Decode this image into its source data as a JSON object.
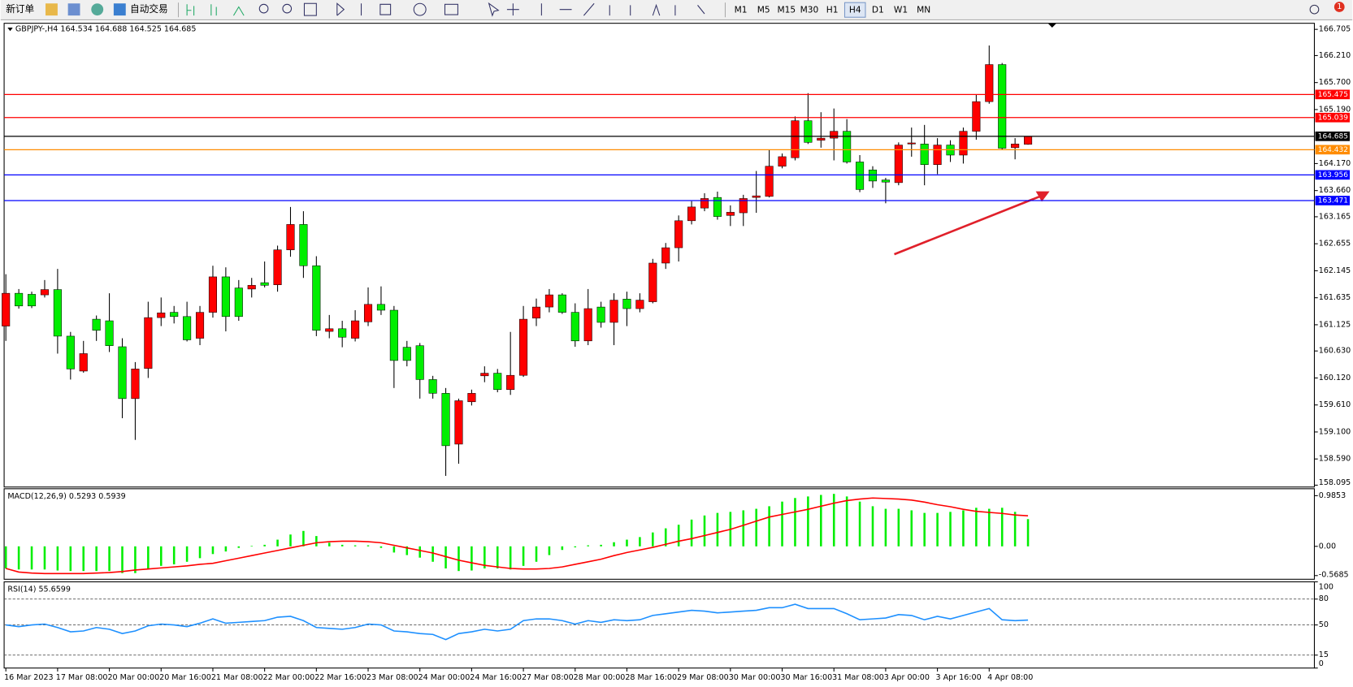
{
  "toolbar": {
    "new_order": "新订单",
    "auto_trading": "自动交易",
    "timeframes": [
      "M1",
      "M5",
      "M15",
      "M30",
      "H1",
      "H4",
      "D1",
      "W1",
      "MN"
    ],
    "selected": "H4",
    "notifications": "1"
  },
  "chart_data": [
    {
      "type": "candlestick",
      "title": "GBPJPY-,H4 164.534 164.688 164.525 164.685",
      "categories": [
        "16 Mar 2023",
        null,
        null,
        null,
        "17 Mar 08:00",
        null,
        null,
        null,
        "20 Mar 00:00",
        null,
        null,
        null,
        "20 Mar 16:00",
        null,
        null,
        null,
        "21 Mar 08:00",
        null,
        null,
        null,
        "22 Mar 00:00",
        null,
        null,
        null,
        "22 Mar 16:00",
        null,
        null,
        null,
        "23 Mar 08:00",
        null,
        null,
        null,
        "24 Mar 00:00",
        null,
        null,
        null,
        "24 Mar 16:00",
        null,
        null,
        null,
        "27 Mar 08:00",
        null,
        null,
        null,
        "28 Mar 00:00",
        null,
        null,
        null,
        "28 Mar 16:00",
        null,
        null,
        null,
        "29 Mar 08:00",
        null,
        null,
        null,
        "30 Mar 00:00",
        null,
        null,
        null,
        "30 Mar 16:00",
        null,
        null,
        null,
        "31 Mar 08:00",
        null,
        null,
        null,
        "3 Apr 00:00",
        null,
        null,
        null,
        "3 Apr 16:00",
        null,
        null,
        null,
        "4 Apr 08:00",
        null,
        null,
        null
      ],
      "open": [
        161.1,
        161.72,
        161.7,
        161.69,
        161.79,
        160.91,
        160.25,
        161.23,
        161.2,
        160.71,
        159.73,
        160.3,
        161.26,
        161.36,
        161.28,
        160.87,
        161.36,
        162.03,
        161.82,
        161.8,
        161.92,
        161.88,
        162.54,
        163.02,
        162.24,
        161.0,
        161.05,
        160.87,
        161.18,
        161.51,
        161.4,
        160.7,
        160.73,
        160.09,
        159.83,
        158.87,
        159.67,
        160.16,
        160.21,
        159.9,
        160.17,
        161.25,
        161.46,
        161.69,
        161.36,
        160.82,
        161.46,
        161.17,
        161.61,
        161.43,
        161.56,
        162.29,
        162.58,
        163.09,
        163.33,
        163.53,
        163.19,
        163.24,
        163.53,
        163.55,
        164.12,
        164.28,
        164.98,
        164.61,
        164.65,
        164.78,
        164.2,
        164.05,
        163.86,
        163.81,
        164.54,
        164.54,
        164.15,
        164.52,
        164.33,
        164.78,
        165.34,
        166.04,
        164.47,
        164.534
      ],
      "high": [
        162.08,
        161.8,
        161.75,
        161.97,
        162.18,
        160.99,
        160.82,
        161.3,
        161.72,
        160.87,
        160.42,
        161.56,
        161.64,
        161.48,
        161.56,
        161.48,
        162.24,
        162.21,
        161.97,
        162.01,
        162.32,
        162.62,
        163.35,
        163.27,
        162.42,
        161.31,
        161.2,
        161.4,
        161.83,
        161.85,
        161.48,
        160.82,
        160.78,
        160.16,
        159.93,
        159.73,
        159.9,
        160.34,
        160.29,
        160.99,
        161.48,
        161.62,
        161.8,
        161.72,
        161.53,
        161.8,
        161.56,
        161.72,
        161.75,
        161.72,
        162.37,
        162.67,
        163.19,
        163.46,
        163.61,
        163.64,
        163.38,
        163.58,
        164.03,
        164.43,
        164.36,
        165.06,
        165.5,
        165.14,
        165.21,
        165.01,
        164.33,
        164.12,
        163.9,
        164.57,
        164.85,
        164.9,
        164.65,
        164.61,
        164.85,
        165.47,
        166.4,
        166.07,
        164.65,
        164.688
      ],
      "low": [
        160.82,
        161.43,
        161.44,
        161.64,
        160.58,
        160.09,
        160.22,
        160.82,
        160.61,
        159.36,
        158.95,
        160.12,
        161.1,
        161.15,
        160.81,
        160.74,
        161.26,
        161.0,
        161.2,
        161.64,
        161.83,
        161.75,
        162.41,
        162.01,
        160.91,
        160.87,
        160.7,
        160.81,
        161.1,
        161.31,
        159.93,
        160.34,
        159.73,
        159.73,
        158.27,
        158.5,
        159.6,
        160.04,
        159.85,
        159.8,
        160.14,
        161.1,
        161.36,
        161.33,
        160.71,
        160.74,
        161.07,
        160.74,
        161.1,
        161.36,
        161.53,
        162.18,
        162.32,
        163.02,
        163.27,
        163.11,
        162.99,
        162.99,
        163.24,
        163.53,
        164.08,
        164.23,
        164.54,
        164.47,
        164.23,
        164.17,
        163.63,
        163.71,
        163.42,
        163.76,
        164.3,
        163.76,
        163.97,
        164.2,
        164.17,
        164.62,
        165.3,
        164.43,
        164.25,
        164.525
      ],
      "close": [
        161.72,
        161.48,
        161.48,
        161.79,
        160.91,
        160.29,
        160.58,
        161.02,
        160.73,
        159.73,
        160.29,
        161.26,
        161.35,
        161.28,
        160.84,
        161.36,
        162.03,
        161.28,
        161.28,
        161.87,
        161.87,
        162.54,
        163.02,
        162.24,
        161.02,
        161.05,
        160.89,
        161.2,
        161.51,
        161.4,
        160.45,
        160.45,
        160.09,
        159.83,
        158.84,
        159.69,
        159.83,
        160.21,
        159.9,
        160.17,
        161.23,
        161.46,
        161.69,
        161.36,
        160.82,
        161.43,
        161.17,
        161.59,
        161.43,
        161.59,
        162.29,
        162.58,
        163.09,
        163.35,
        163.51,
        163.17,
        163.25,
        163.51,
        163.56,
        164.12,
        164.3,
        164.98,
        164.57,
        164.65,
        164.78,
        164.2,
        163.68,
        163.84,
        163.82,
        164.52,
        164.56,
        164.15,
        164.52,
        164.33,
        164.78,
        165.34,
        166.04,
        164.46,
        164.54,
        164.685
      ],
      "up_color": "#ff0000",
      "down_color": "#00ee00",
      "ylim": [
        158.06,
        166.82
      ],
      "yticks": [
        166.705,
        {
          "value": 166.21,
          "label": "166.210"
        },
        {
          "value": 165.7,
          "label": "165.700"
        },
        {
          "value": 165.19,
          "label": "165.190"
        },
        {
          "value": 164.17,
          "label": "164.170"
        },
        {
          "value": 163.66,
          "label": "163.660"
        },
        163.165,
        162.655,
        162.145,
        161.635,
        161.125,
        {
          "value": 160.63,
          "label": "160.630"
        },
        {
          "value": 160.12,
          "label": "160.120"
        },
        {
          "value": 159.61,
          "label": "159.610"
        },
        {
          "value": 159.1,
          "label": "159.100"
        },
        {
          "value": 158.59,
          "label": "158.590"
        },
        158.095
      ],
      "hlines": [
        {
          "value": 165.475,
          "color": "#ff0000"
        },
        {
          "value": 165.039,
          "color": "#ff0000"
        },
        {
          "value": 164.685,
          "color": "#000000"
        },
        {
          "value": 164.432,
          "color": "#ff8c00"
        },
        {
          "value": 163.956,
          "color": "#0000ff"
        },
        {
          "value": 163.471,
          "color": "#0000ff"
        }
      ]
    },
    {
      "type": "macd",
      "title": "MACD(12,26,9) 0.5293 0.5939",
      "series": [
        {
          "color": "#00ee00",
          "values": [
            -0.43,
            -0.45,
            -0.45,
            -0.45,
            -0.47,
            -0.48,
            -0.48,
            -0.48,
            -0.48,
            -0.52,
            -0.52,
            -0.43,
            -0.38,
            -0.35,
            -0.3,
            -0.23,
            -0.15,
            -0.1,
            -0.03,
            0.01,
            0.03,
            0.13,
            0.23,
            0.3,
            0.2,
            0.07,
            0.03,
            0.02,
            0.02,
            -0.03,
            -0.12,
            -0.17,
            -0.22,
            -0.3,
            -0.43,
            -0.48,
            -0.47,
            -0.43,
            -0.43,
            -0.45,
            -0.38,
            -0.3,
            -0.17,
            -0.07,
            -0.02,
            0.02,
            0.03,
            0.08,
            0.13,
            0.18,
            0.27,
            0.35,
            0.42,
            0.52,
            0.6,
            0.65,
            0.67,
            0.7,
            0.73,
            0.78,
            0.87,
            0.94,
            0.97,
            1.0,
            1.02,
            0.97,
            0.87,
            0.78,
            0.73,
            0.73,
            0.7,
            0.65,
            0.65,
            0.67,
            0.7,
            0.75,
            0.73,
            0.75,
            0.67,
            0.5293
          ]
        },
        {
          "color": "#ff0000",
          "values": [
            -0.43,
            -0.5,
            -0.52,
            -0.53,
            -0.53,
            -0.53,
            -0.53,
            -0.52,
            -0.51,
            -0.49,
            -0.46,
            -0.44,
            -0.42,
            -0.4,
            -0.38,
            -0.35,
            -0.33,
            -0.28,
            -0.23,
            -0.18,
            -0.13,
            -0.08,
            -0.03,
            0.02,
            0.07,
            0.09,
            0.1,
            0.1,
            0.09,
            0.07,
            0.02,
            -0.03,
            -0.08,
            -0.13,
            -0.2,
            -0.27,
            -0.32,
            -0.37,
            -0.4,
            -0.43,
            -0.44,
            -0.44,
            -0.43,
            -0.4,
            -0.35,
            -0.3,
            -0.25,
            -0.18,
            -0.12,
            -0.07,
            -0.02,
            0.04,
            0.1,
            0.15,
            0.21,
            0.27,
            0.33,
            0.41,
            0.49,
            0.57,
            0.62,
            0.67,
            0.72,
            0.78,
            0.84,
            0.89,
            0.92,
            0.94,
            0.93,
            0.92,
            0.9,
            0.86,
            0.81,
            0.77,
            0.72,
            0.68,
            0.66,
            0.64,
            0.61,
            0.5939
          ]
        }
      ],
      "ylim": [
        -0.64,
        1.12
      ],
      "yticks": [
        0.9853,
        {
          "value": 0,
          "label": "0.00"
        },
        -0.5685
      ]
    },
    {
      "type": "line",
      "title": "RSI(14) 55.6599",
      "series": [
        {
          "color": "#1e90ff",
          "values": [
            50,
            48,
            50,
            51,
            47,
            42,
            43,
            47,
            45,
            40,
            43,
            49,
            51,
            50,
            48,
            52,
            57,
            52,
            53,
            54,
            55,
            59,
            60,
            55,
            47,
            46,
            45,
            47,
            51,
            50,
            43,
            42,
            40,
            39,
            33,
            40,
            42,
            45,
            43,
            45,
            55,
            57,
            57,
            55,
            51,
            55,
            53,
            56,
            55,
            56,
            61,
            63,
            65,
            67,
            66,
            64,
            65,
            66,
            67,
            70,
            70,
            74,
            69,
            69,
            69,
            63,
            56,
            57,
            58,
            62,
            61,
            56,
            60,
            57,
            61,
            65,
            69,
            56,
            55,
            55.6599
          ]
        }
      ],
      "ylim": [
        0,
        100
      ],
      "yticks": [
        100,
        80,
        50,
        15,
        0
      ],
      "levels": [
        80,
        50,
        15
      ]
    }
  ]
}
